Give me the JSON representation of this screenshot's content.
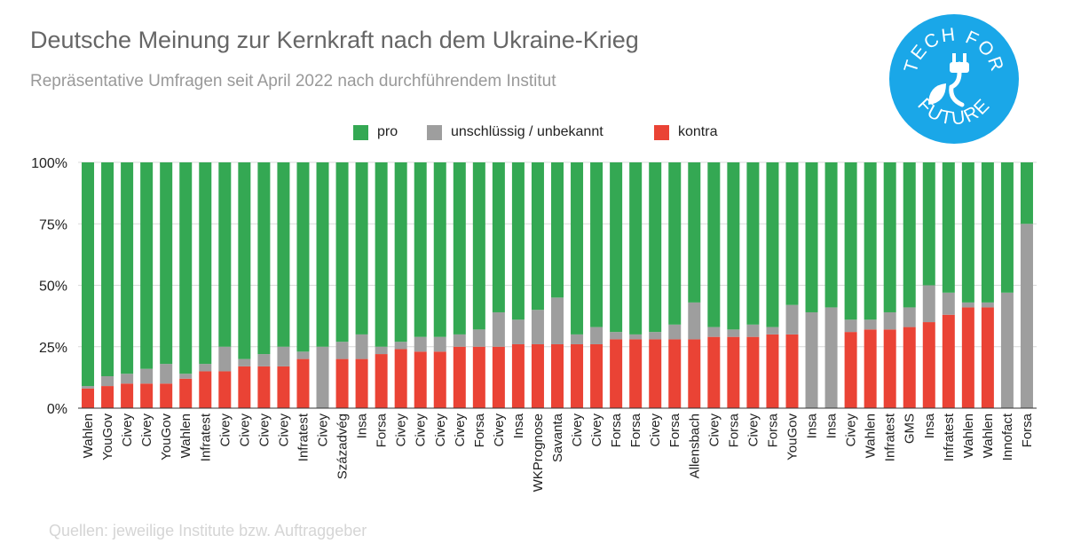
{
  "title": "Deutsche Meinung zur Kernkraft nach dem Ukraine-Krieg",
  "subtitle": "Repräsentative Umfragen seit April 2022 nach durchführendem Institut",
  "source": "Quellen: jeweilige Institute bzw. Auftraggeber",
  "logo": {
    "top_text": "TECH FOR",
    "bottom_text": "FUTURE",
    "color": "#1aa7e8",
    "icon": "plug-leaf-icon"
  },
  "colors": {
    "pro": "#34a853",
    "undecided": "#9e9e9e",
    "contra": "#ea4335",
    "grid": "#d9d9d9",
    "axis": "#333333"
  },
  "chart_data": {
    "type": "bar",
    "stacked": true,
    "legend_position": "top",
    "ylim": [
      0,
      100
    ],
    "yticks": [
      "0%",
      "25%",
      "50%",
      "75%",
      "100%"
    ],
    "categories": [
      "Wahlen",
      "YouGov",
      "Civey",
      "Civey",
      "YouGov",
      "Wahlen",
      "Infratest",
      "Civey",
      "Civey",
      "Civey",
      "Civey",
      "Infratest",
      "Civey",
      "Századvég",
      "Insa",
      "Forsa",
      "Civey",
      "Civey",
      "Civey",
      "Civey",
      "Forsa",
      "Civey",
      "Insa",
      "WKPrognose",
      "Savanta",
      "Civey",
      "Civey",
      "Forsa",
      "Forsa",
      "Civey",
      "Forsa",
      "Allensbach",
      "Civey",
      "Forsa",
      "Civey",
      "Forsa",
      "YouGov",
      "Insa",
      "Insa",
      "Civey",
      "Wahlen",
      "Infratest",
      "GMS",
      "Insa",
      "Infratest",
      "Wahlen",
      "Wahlen",
      "Innofact",
      "Forsa"
    ],
    "series": [
      {
        "name": "kontra",
        "key": "contra",
        "values": [
          8,
          9,
          10,
          10,
          10,
          12,
          15,
          15,
          17,
          17,
          17,
          20,
          0,
          20,
          20,
          22,
          24,
          23,
          23,
          25,
          25,
          25,
          26,
          26,
          26,
          26,
          26,
          28,
          28,
          28,
          28,
          28,
          29,
          29,
          29,
          30,
          30,
          0,
          0,
          31,
          32,
          32,
          33,
          35,
          38,
          41,
          41,
          0,
          0
        ]
      },
      {
        "name": "unschlüssig / unbekannt",
        "key": "undecided",
        "values": [
          1,
          4,
          4,
          6,
          8,
          2,
          3,
          10,
          3,
          5,
          8,
          3,
          25,
          7,
          10,
          3,
          3,
          6,
          6,
          5,
          7,
          14,
          10,
          14,
          19,
          4,
          7,
          3,
          2,
          3,
          6,
          15,
          4,
          3,
          5,
          3,
          12,
          39,
          41,
          5,
          4,
          7,
          8,
          15,
          9,
          2,
          2,
          47,
          75
        ]
      },
      {
        "name": "pro",
        "key": "pro",
        "values": [
          91,
          87,
          86,
          84,
          82,
          86,
          82,
          75,
          80,
          78,
          75,
          77,
          75,
          73,
          70,
          75,
          73,
          71,
          71,
          70,
          68,
          61,
          64,
          60,
          55,
          70,
          67,
          69,
          70,
          69,
          66,
          57,
          67,
          68,
          66,
          67,
          58,
          61,
          59,
          64,
          64,
          61,
          59,
          50,
          53,
          57,
          57,
          53,
          25
        ]
      }
    ]
  }
}
